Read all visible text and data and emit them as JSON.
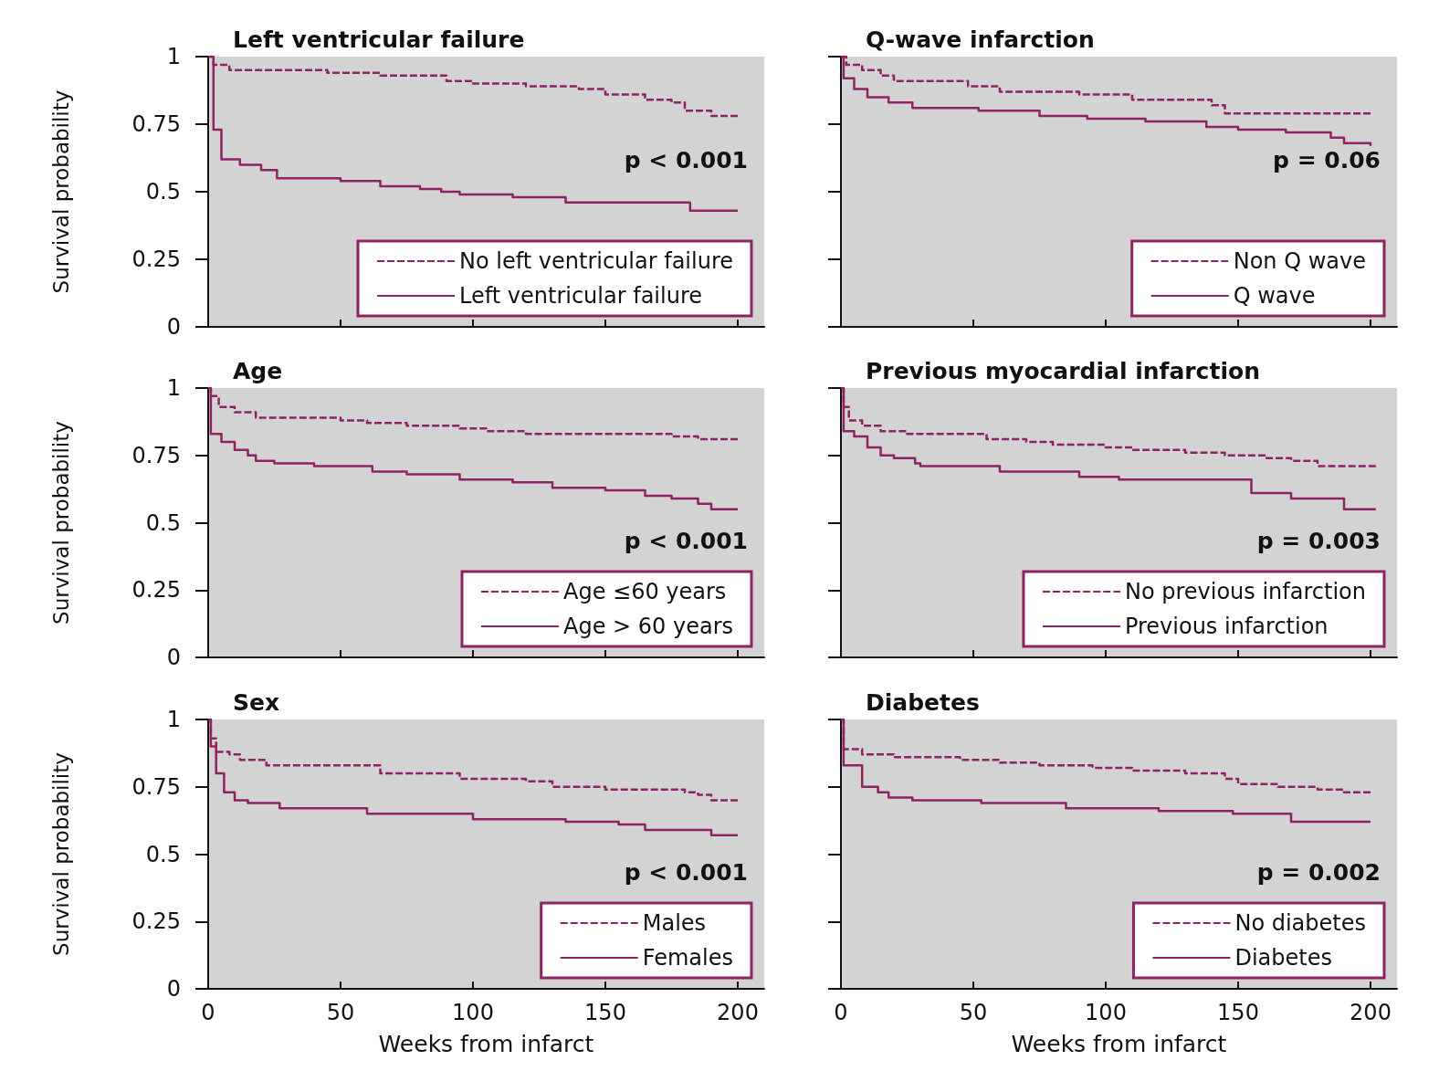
{
  "chart_data": [
    {
      "type": "step",
      "title": "Left ventricular failure",
      "ylabel": "Survival probability",
      "xlim": [
        0,
        210
      ],
      "xticks": [
        0,
        50,
        100,
        150,
        200
      ],
      "ylim": [
        0,
        1
      ],
      "yticks": [
        0,
        0.25,
        0.5,
        0.75,
        1
      ],
      "legend": "bottom right",
      "tick_labels": "y",
      "annotations": [
        "p < 0.001"
      ],
      "series": [
        {
          "name": "No left ventricular failure",
          "color": "#8e2263",
          "line_style": "dashed",
          "x": [
            0,
            2,
            8,
            45,
            65,
            90,
            100,
            120,
            140,
            150,
            165,
            175,
            180,
            190,
            200
          ],
          "values": [
            1,
            0.97,
            0.95,
            0.94,
            0.93,
            0.91,
            0.9,
            0.89,
            0.88,
            0.86,
            0.84,
            0.83,
            0.8,
            0.78,
            0.78
          ]
        },
        {
          "name": "Left ventricular failure",
          "color": "#8e2263",
          "line_style": "solid",
          "x": [
            0,
            2,
            5,
            12,
            20,
            26,
            50,
            65,
            80,
            88,
            95,
            115,
            135,
            182,
            200
          ],
          "values": [
            1,
            0.73,
            0.62,
            0.6,
            0.58,
            0.55,
            0.54,
            0.52,
            0.51,
            0.5,
            0.49,
            0.48,
            0.46,
            0.43,
            0.43
          ]
        }
      ]
    },
    {
      "type": "step",
      "title": "Q-wave infarction",
      "xlim": [
        0,
        210
      ],
      "xticks": [
        0,
        50,
        100,
        150,
        200
      ],
      "ylim": [
        0,
        1
      ],
      "yticks": [
        0,
        0.25,
        0.5,
        0.75,
        1
      ],
      "legend": "bottom right",
      "tick_labels": false,
      "annotations": [
        "p = 0.06"
      ],
      "series": [
        {
          "name": "Non Q wave",
          "color": "#8e2263",
          "line_style": "dashed",
          "x": [
            0,
            2,
            8,
            15,
            20,
            48,
            60,
            90,
            110,
            140,
            145,
            200
          ],
          "values": [
            1,
            0.97,
            0.95,
            0.93,
            0.91,
            0.89,
            0.87,
            0.86,
            0.84,
            0.82,
            0.79,
            0.79
          ]
        },
        {
          "name": "Q wave",
          "color": "#8e2263",
          "line_style": "solid",
          "x": [
            0,
            1,
            5,
            10,
            18,
            27,
            52,
            75,
            93,
            115,
            138,
            150,
            168,
            185,
            190,
            200
          ],
          "values": [
            1,
            0.92,
            0.88,
            0.85,
            0.83,
            0.81,
            0.8,
            0.78,
            0.77,
            0.76,
            0.74,
            0.73,
            0.72,
            0.7,
            0.68,
            0.67
          ]
        }
      ]
    },
    {
      "type": "step",
      "title": "Age",
      "ylabel": "Survival probability",
      "xlim": [
        0,
        210
      ],
      "xticks": [
        0,
        50,
        100,
        150,
        200
      ],
      "ylim": [
        0,
        1
      ],
      "yticks": [
        0,
        0.25,
        0.5,
        0.75,
        1
      ],
      "legend": "bottom right",
      "tick_labels": "y",
      "annotations": [
        "p < 0.001"
      ],
      "series": [
        {
          "name": "Age ≤60 years",
          "color": "#8e2263",
          "line_style": "dashed",
          "x": [
            0,
            1,
            4,
            10,
            18,
            50,
            60,
            75,
            95,
            105,
            120,
            175,
            185,
            200
          ],
          "values": [
            1,
            0.97,
            0.93,
            0.91,
            0.89,
            0.88,
            0.87,
            0.86,
            0.85,
            0.84,
            0.83,
            0.82,
            0.81,
            0.81
          ]
        },
        {
          "name": "Age > 60 years",
          "color": "#8e2263",
          "line_style": "solid",
          "x": [
            0,
            1,
            5,
            10,
            15,
            18,
            25,
            40,
            62,
            75,
            95,
            115,
            130,
            150,
            165,
            175,
            185,
            190,
            200
          ],
          "values": [
            1,
            0.83,
            0.8,
            0.77,
            0.75,
            0.73,
            0.72,
            0.71,
            0.69,
            0.68,
            0.66,
            0.65,
            0.63,
            0.62,
            0.6,
            0.59,
            0.57,
            0.55,
            0.55
          ]
        }
      ]
    },
    {
      "type": "step",
      "title": "Previous myocardial infarction",
      "xlim": [
        0,
        210
      ],
      "xticks": [
        0,
        50,
        100,
        150,
        200
      ],
      "ylim": [
        0,
        1
      ],
      "yticks": [
        0,
        0.25,
        0.5,
        0.75,
        1
      ],
      "legend": "bottom right",
      "tick_labels": false,
      "annotations": [
        "p = 0.003"
      ],
      "series": [
        {
          "name": "No previous infarction",
          "color": "#8e2263",
          "line_style": "dashed",
          "x": [
            0,
            1,
            3,
            8,
            15,
            25,
            55,
            70,
            80,
            100,
            110,
            130,
            145,
            160,
            170,
            180,
            202
          ],
          "values": [
            1,
            0.93,
            0.88,
            0.86,
            0.84,
            0.83,
            0.81,
            0.8,
            0.79,
            0.78,
            0.77,
            0.76,
            0.75,
            0.74,
            0.73,
            0.71,
            0.71
          ]
        },
        {
          "name": "Previous infarction",
          "color": "#8e2263",
          "line_style": "solid",
          "x": [
            0,
            1,
            5,
            10,
            15,
            20,
            28,
            30,
            60,
            90,
            105,
            155,
            170,
            190,
            202
          ],
          "values": [
            1,
            0.84,
            0.82,
            0.78,
            0.75,
            0.74,
            0.72,
            0.71,
            0.69,
            0.67,
            0.66,
            0.61,
            0.59,
            0.55,
            0.55
          ]
        }
      ]
    },
    {
      "type": "step",
      "title": "Sex",
      "ylabel": "Survival probability",
      "xlabel": "Weeks from infarct",
      "xlim": [
        0,
        210
      ],
      "xticks": [
        0,
        50,
        100,
        150,
        200
      ],
      "ylim": [
        0,
        1
      ],
      "yticks": [
        0,
        0.25,
        0.5,
        0.75,
        1
      ],
      "legend": "bottom right",
      "annotations": [
        "p < 0.001"
      ],
      "series": [
        {
          "name": "Males",
          "color": "#8e2263",
          "line_style": "dashed",
          "x": [
            0,
            1,
            3,
            8,
            12,
            22,
            65,
            95,
            120,
            130,
            150,
            180,
            185,
            190,
            200
          ],
          "values": [
            1,
            0.93,
            0.88,
            0.87,
            0.85,
            0.83,
            0.8,
            0.78,
            0.77,
            0.75,
            0.74,
            0.73,
            0.72,
            0.7,
            0.7
          ]
        },
        {
          "name": "Females",
          "color": "#8e2263",
          "line_style": "solid",
          "x": [
            0,
            1,
            3,
            6,
            10,
            15,
            27,
            60,
            100,
            135,
            155,
            165,
            190,
            200
          ],
          "values": [
            1,
            0.9,
            0.8,
            0.73,
            0.7,
            0.69,
            0.67,
            0.65,
            0.63,
            0.62,
            0.61,
            0.59,
            0.57,
            0.57
          ]
        }
      ]
    },
    {
      "type": "step",
      "title": "Diabetes",
      "xlabel": "Weeks from infarct",
      "xlim": [
        0,
        210
      ],
      "xticks": [
        0,
        50,
        100,
        150,
        200
      ],
      "ylim": [
        0,
        1
      ],
      "yticks": [
        0,
        0.25,
        0.5,
        0.75,
        1
      ],
      "legend": "bottom right",
      "tick_labels": "x",
      "annotations": [
        "p = 0.002"
      ],
      "series": [
        {
          "name": "No diabetes",
          "color": "#8e2263",
          "line_style": "dashed",
          "x": [
            0,
            1,
            8,
            20,
            45,
            60,
            75,
            95,
            110,
            130,
            145,
            150,
            165,
            180,
            190,
            200
          ],
          "values": [
            1,
            0.89,
            0.87,
            0.86,
            0.85,
            0.84,
            0.83,
            0.82,
            0.81,
            0.8,
            0.78,
            0.76,
            0.75,
            0.74,
            0.73,
            0.73
          ]
        },
        {
          "name": "Diabetes",
          "color": "#8e2263",
          "line_style": "solid",
          "x": [
            0,
            1,
            8,
            14,
            18,
            27,
            53,
            85,
            120,
            148,
            170,
            200
          ],
          "values": [
            1,
            0.83,
            0.75,
            0.73,
            0.71,
            0.7,
            0.69,
            0.67,
            0.66,
            0.65,
            0.62,
            0.62
          ]
        }
      ]
    }
  ]
}
